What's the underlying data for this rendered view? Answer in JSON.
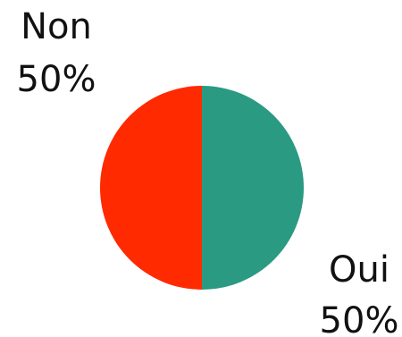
{
  "chart_data": {
    "type": "pie",
    "title": "",
    "legend": "none",
    "start_angle_deg": 0,
    "direction": "clockwise",
    "slices": [
      {
        "label": "Oui",
        "value": 50,
        "percent_label": "50%",
        "color": "#2a9a82"
      },
      {
        "label": "Non",
        "value": 50,
        "percent_label": "50%",
        "color": "#ff2a00"
      }
    ]
  }
}
